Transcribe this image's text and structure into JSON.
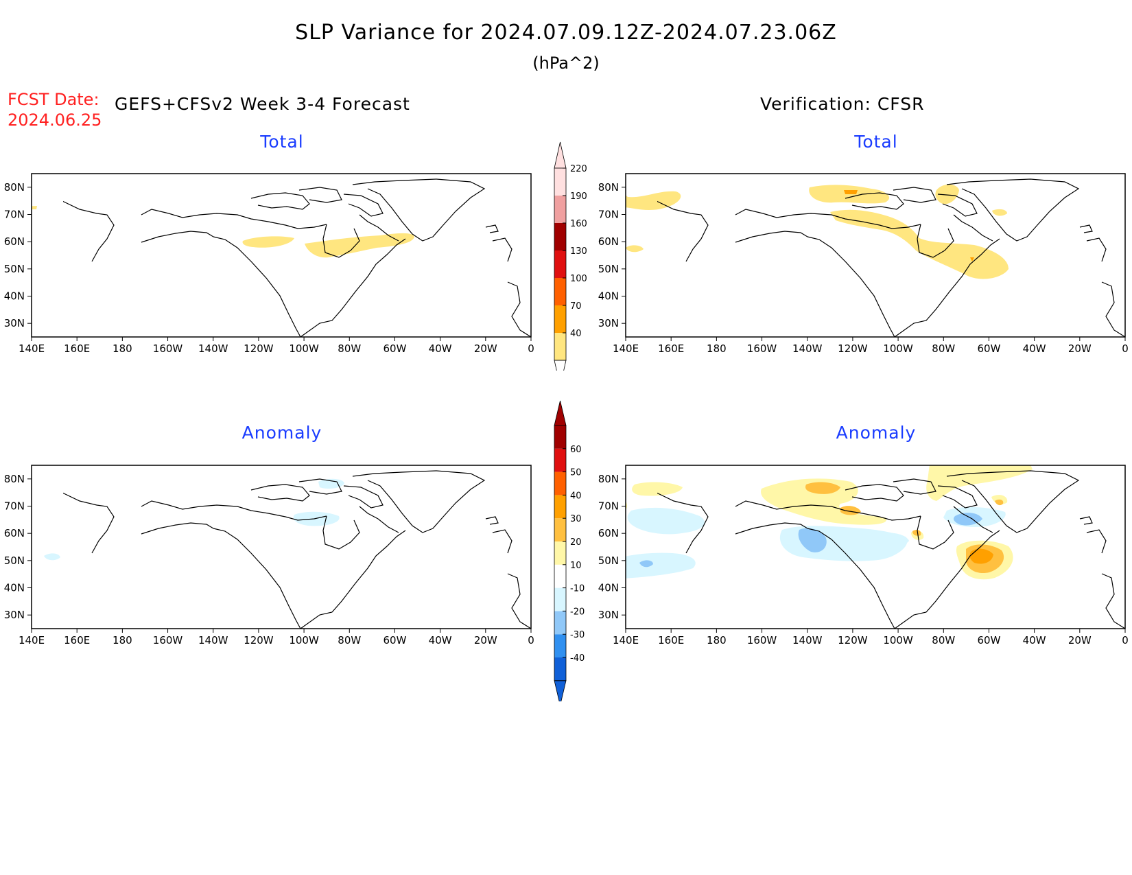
{
  "header": {
    "title": "SLP Variance for 2024.07.09.12Z-2024.07.23.06Z",
    "units": "(hPa^2)",
    "fcst_date_label": "FCST Date:",
    "fcst_date_value": "2024.06.25",
    "left_column_title": "GEFS+CFSv2 Week 3-4 Forecast",
    "right_column_title": "Verification: CFSR"
  },
  "panels": {
    "fc_total": {
      "title": "Total"
    },
    "vr_total": {
      "title": "Total"
    },
    "fc_anom": {
      "title": "Anomaly"
    },
    "vr_anom": {
      "title": "Anomaly"
    }
  },
  "axes": {
    "lon_labels": [
      "140E",
      "160E",
      "180",
      "160W",
      "140W",
      "120W",
      "100W",
      "80W",
      "60W",
      "40W",
      "20W",
      "0"
    ],
    "lat_labels": [
      "80N",
      "70N",
      "60N",
      "50N",
      "40N",
      "30N"
    ],
    "lat_values": [
      80,
      70,
      60,
      50,
      40,
      30
    ],
    "lon_range": [
      "140E",
      "0"
    ],
    "lat_range": [
      25,
      85
    ]
  },
  "colorbars": {
    "total": {
      "levels": [
        "40",
        "70",
        "100",
        "130",
        "160",
        "190",
        "220"
      ],
      "colors": [
        "#ffe680",
        "#ffa000",
        "#ff6000",
        "#e01010",
        "#a00000",
        "#f0a0a0",
        "#ffe0e0"
      ]
    },
    "anomaly": {
      "levels": [
        "-40",
        "-30",
        "-20",
        "-10",
        "10",
        "20",
        "30",
        "40",
        "50",
        "60"
      ],
      "colors": [
        "#1060d8",
        "#3090f0",
        "#90c8f8",
        "#d8f6ff",
        "#ffffff",
        "#fff7a8",
        "#ffc040",
        "#ffa000",
        "#ff6000",
        "#e01010",
        "#a00000"
      ]
    }
  },
  "map_features": [
    {
      "panel": "fc_total",
      "kind": "shading",
      "category": "40-70",
      "description": "Hudson Bay to central North Atlantic band"
    },
    {
      "panel": "fc_total",
      "kind": "shading",
      "category": "40-70",
      "description": "Bering Sea patches"
    },
    {
      "panel": "vr_total",
      "kind": "shading",
      "category": "40-70",
      "description": "NW Pacific / Siberia, Canadian Arctic, North Atlantic"
    },
    {
      "panel": "vr_total",
      "kind": "shading",
      "category": "70-100",
      "description": "North Atlantic near 30W 50N"
    },
    {
      "panel": "fc_anom",
      "kind": "shading",
      "category": "-10 to -20",
      "description": "Greenland, Labrador Sea, N Pacific"
    },
    {
      "panel": "vr_anom",
      "kind": "shading",
      "category": "10 to 40",
      "description": "NW Pacific, Canadian Arctic, mid-Atlantic near 25W 48N"
    },
    {
      "panel": "vr_anom",
      "kind": "shading",
      "category": "-10 to -30",
      "description": "N Pacific, central Canada, N Atlantic 60N"
    }
  ]
}
